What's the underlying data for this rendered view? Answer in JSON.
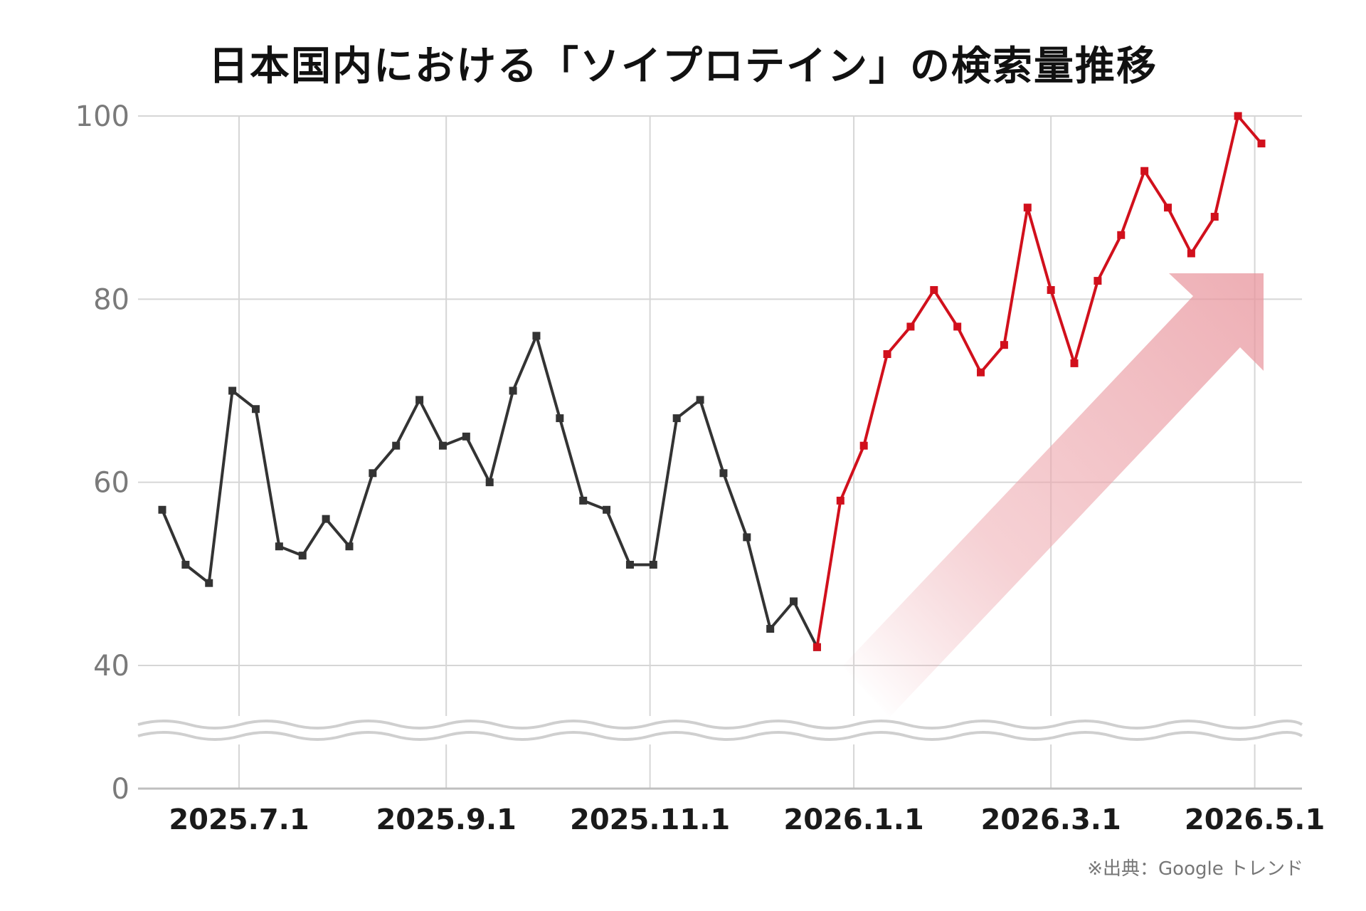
{
  "chart_data": {
    "type": "line",
    "title": "日本国内における「ソイプロテイン」の検索量推移",
    "source": "※出典：Google トレンド",
    "x_tick_labels": [
      "2025.7.1",
      "2025.9.1",
      "2025.11.1",
      "2026.1.1",
      "2026.3.1",
      "2026.5.1"
    ],
    "y_tick_labels": [
      "0",
      "40",
      "60",
      "80",
      "100"
    ],
    "axis_break": {
      "from": 0,
      "to": 40
    },
    "ylim": [
      0,
      100
    ],
    "grid": true,
    "colors": {
      "before": "#333333",
      "after": "#d1101c",
      "arrow": "#e8949c",
      "grid": "#d6d6d6"
    },
    "series": [
      {
        "values": [
          [
            "2025-06-08",
            57
          ],
          [
            "2025-06-15",
            51
          ],
          [
            "2025-06-22",
            49
          ],
          [
            "2025-06-29",
            70
          ],
          [
            "2025-07-06",
            68
          ],
          [
            "2025-07-13",
            53
          ],
          [
            "2025-07-20",
            52
          ],
          [
            "2025-07-27",
            56
          ],
          [
            "2025-08-03",
            53
          ],
          [
            "2025-08-10",
            61
          ],
          [
            "2025-08-17",
            64
          ],
          [
            "2025-08-24",
            69
          ],
          [
            "2025-08-31",
            64
          ],
          [
            "2025-09-07",
            65
          ],
          [
            "2025-09-14",
            60
          ],
          [
            "2025-09-21",
            70
          ],
          [
            "2025-09-28",
            76
          ],
          [
            "2025-10-05",
            67
          ],
          [
            "2025-10-12",
            58
          ],
          [
            "2025-10-19",
            57
          ],
          [
            "2025-10-26",
            51
          ],
          [
            "2025-11-02",
            51
          ],
          [
            "2025-11-09",
            67
          ],
          [
            "2025-11-16",
            69
          ],
          [
            "2025-11-23",
            61
          ],
          [
            "2025-11-30",
            54
          ],
          [
            "2025-12-07",
            44
          ],
          [
            "2025-12-14",
            47
          ],
          [
            "2025-12-21",
            42
          ]
        ]
      },
      {
        "values": [
          [
            "2025-12-21",
            42
          ],
          [
            "2025-12-28",
            58
          ],
          [
            "2026-01-04",
            64
          ],
          [
            "2026-01-11",
            74
          ],
          [
            "2026-01-18",
            77
          ],
          [
            "2026-01-25",
            81
          ],
          [
            "2026-02-01",
            77
          ],
          [
            "2026-02-08",
            72
          ],
          [
            "2026-02-15",
            75
          ],
          [
            "2026-02-22",
            90
          ],
          [
            "2026-03-01",
            81
          ],
          [
            "2026-03-08",
            73
          ],
          [
            "2026-03-15",
            82
          ],
          [
            "2026-03-22",
            87
          ],
          [
            "2026-03-29",
            94
          ],
          [
            "2026-04-05",
            90
          ],
          [
            "2026-04-12",
            85
          ],
          [
            "2026-04-19",
            89
          ],
          [
            "2026-04-26",
            100
          ],
          [
            "2026-05-03",
            97
          ]
        ]
      }
    ]
  }
}
